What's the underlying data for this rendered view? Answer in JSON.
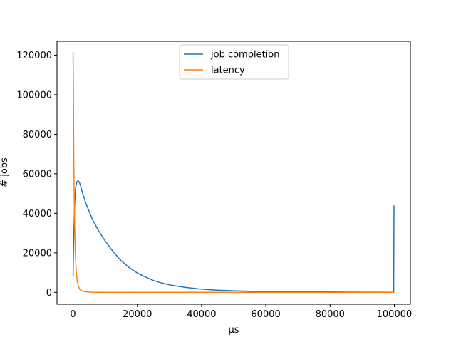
{
  "chart_data": {
    "type": "line",
    "title": "",
    "xlabel": "µs",
    "ylabel": "# jobs",
    "xlim": [
      -5000,
      105000
    ],
    "ylim": [
      -6000,
      127000
    ],
    "x_ticks": [
      0,
      20000,
      40000,
      60000,
      80000,
      100000
    ],
    "x_tick_labels": [
      "0",
      "20000",
      "40000",
      "60000",
      "80000",
      "100000"
    ],
    "y_ticks": [
      0,
      20000,
      40000,
      60000,
      80000,
      100000,
      120000
    ],
    "y_tick_labels": [
      "0",
      "20000",
      "40000",
      "60000",
      "80000",
      "100000",
      "120000"
    ],
    "grid": false,
    "legend_position": "top-center",
    "series": [
      {
        "name": "job completion",
        "color": "#1f77b4",
        "x": [
          0,
          200,
          500,
          800,
          1200,
          1600,
          2000,
          2500,
          3000,
          4000,
          5000,
          6000,
          8000,
          10000,
          12500,
          15000,
          17500,
          20000,
          22500,
          25000,
          27500,
          30000,
          35000,
          40000,
          45000,
          50000,
          55000,
          60000,
          70000,
          80000,
          90000,
          99500,
          99700,
          99800,
          99900
        ],
        "values": [
          8000,
          28000,
          45000,
          53000,
          56000,
          56500,
          55500,
          53000,
          50000,
          45000,
          41000,
          37000,
          31000,
          26000,
          20500,
          16000,
          12500,
          9800,
          7800,
          6000,
          4800,
          3800,
          2500,
          1600,
          1100,
          800,
          600,
          450,
          300,
          200,
          150,
          100,
          100,
          100,
          44000
        ]
      },
      {
        "name": "latency",
        "color": "#ff7f0e",
        "x": [
          0,
          100,
          200,
          300,
          500,
          700,
          1000,
          1300,
          1700,
          2200,
          3000,
          4000,
          5000,
          6000,
          8000,
          10000,
          20000,
          40000,
          60000,
          80000,
          100000
        ],
        "values": [
          121500,
          104000,
          74000,
          54000,
          34000,
          20000,
          10500,
          5500,
          2800,
          1300,
          600,
          300,
          150,
          100,
          60,
          40,
          30,
          20,
          20,
          20,
          20
        ]
      }
    ]
  }
}
